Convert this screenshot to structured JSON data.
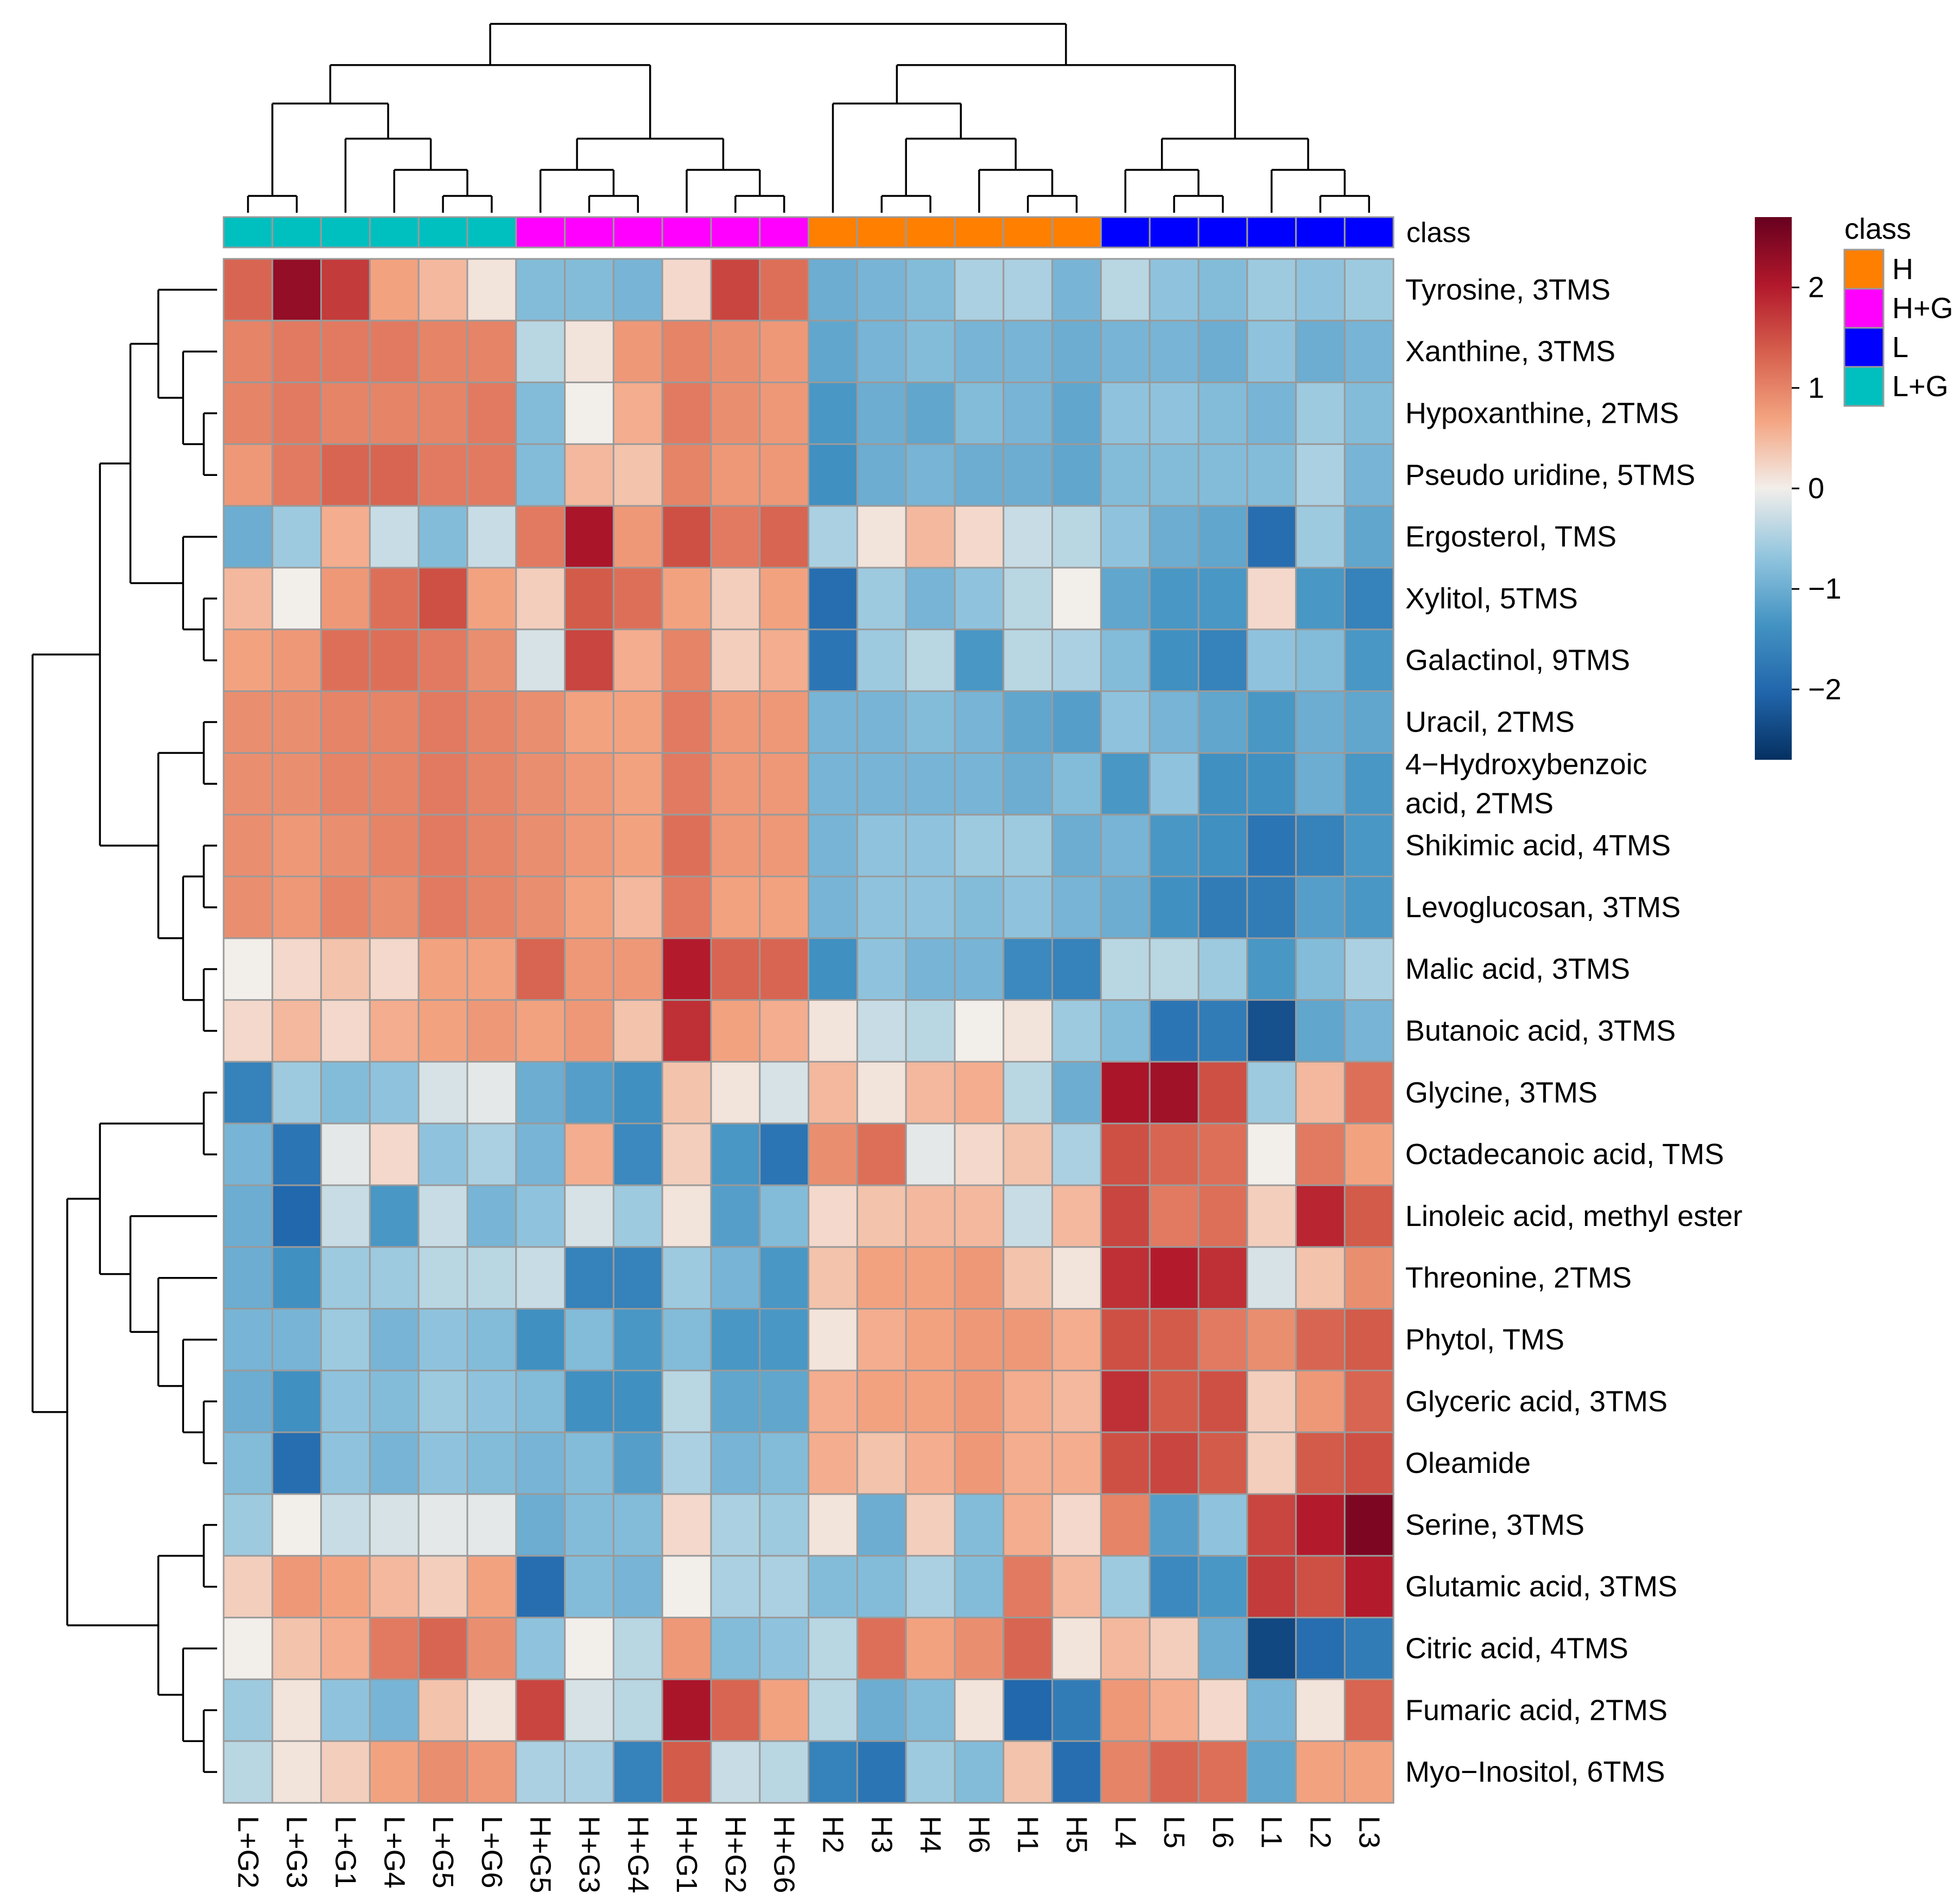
{
  "chart_data": {
    "type": "heatmap",
    "columns": [
      "L+G2",
      "L+G3",
      "L+G1",
      "L+G4",
      "L+G5",
      "L+G6",
      "H+G5",
      "H+G3",
      "H+G4",
      "H+G1",
      "H+G2",
      "H+G6",
      "H2",
      "H3",
      "H4",
      "H6",
      "H1",
      "H5",
      "L4",
      "L5",
      "L6",
      "L1",
      "L2",
      "L3"
    ],
    "column_class": [
      "L+G",
      "L+G",
      "L+G",
      "L+G",
      "L+G",
      "L+G",
      "H+G",
      "H+G",
      "H+G",
      "H+G",
      "H+G",
      "H+G",
      "H",
      "H",
      "H",
      "H",
      "H",
      "H",
      "L",
      "L",
      "L",
      "L",
      "L",
      "L"
    ],
    "class_track_label": "class",
    "rows": [
      "Tyrosine, 3TMS",
      "Xanthine, 3TMS",
      "Hypoxanthine, 2TMS",
      "Pseudo uridine, 5TMS",
      "Ergosterol, TMS",
      "Xylitol, 5TMS",
      "Galactinol, 9TMS",
      "Uracil, 2TMS",
      "4−Hydroxybenzoic acid, 2TMS",
      "Shikimic acid, 4TMS",
      "Levoglucosan, 3TMS",
      "Malic acid, 3TMS",
      "Butanoic acid, 3TMS",
      "Glycine, 3TMS",
      "Octadecanoic acid, TMS",
      "Linoleic acid, methyl ester",
      "Threonine, 2TMS",
      "Phytol, TMS",
      "Glyceric acid, 3TMS",
      "Oleamide",
      "Serine, 3TMS",
      "Glutamic acid, 3TMS",
      "Citric acid, 4TMS",
      "Fumaric acid, 2TMS",
      "Myo−Inositol, 6TMS"
    ],
    "row_labels_display": [
      [
        "Tyrosine, 3TMS"
      ],
      [
        "Xanthine, 3TMS"
      ],
      [
        "Hypoxanthine, 2TMS"
      ],
      [
        "Pseudo uridine, 5TMS"
      ],
      [
        "Ergosterol, TMS"
      ],
      [
        "Xylitol, 5TMS"
      ],
      [
        "Galactinol, 9TMS"
      ],
      [
        "Uracil, 2TMS"
      ],
      [
        "4−Hydroxybenzoic",
        "acid, 2TMS"
      ],
      [
        "Shikimic acid, 4TMS"
      ],
      [
        "Levoglucosan, 3TMS"
      ],
      [
        "Malic acid, 3TMS"
      ],
      [
        "Butanoic acid, 3TMS"
      ],
      [
        "Glycine, 3TMS"
      ],
      [
        "Octadecanoic acid, TMS"
      ],
      [
        "Linoleic acid, methyl ester"
      ],
      [
        "Threonine, 2TMS"
      ],
      [
        "Phytol, TMS"
      ],
      [
        "Glyceric acid, 3TMS"
      ],
      [
        "Oleamide"
      ],
      [
        "Serine, 3TMS"
      ],
      [
        "Glutamic acid, 3TMS"
      ],
      [
        "Citric acid, 4TMS"
      ],
      [
        "Fumaric acid, 2TMS"
      ],
      [
        "Myo−Inositol, 6TMS"
      ]
    ],
    "values": [
      [
        1.3,
        2.3,
        1.7,
        0.7,
        0.5,
        0.1,
        -0.8,
        -0.8,
        -0.9,
        0.2,
        1.6,
        1.2,
        -1.0,
        -0.9,
        -0.8,
        -0.5,
        -0.5,
        -0.9,
        -0.4,
        -0.7,
        -0.8,
        -0.6,
        -0.7,
        -0.6
      ],
      [
        1.0,
        1.1,
        1.1,
        1.1,
        1.0,
        1.0,
        -0.4,
        0.1,
        0.8,
        1.0,
        0.9,
        0.8,
        -1.1,
        -0.9,
        -0.8,
        -0.9,
        -0.9,
        -1.0,
        -0.9,
        -0.9,
        -1.0,
        -0.7,
        -1.0,
        -0.9
      ],
      [
        1.0,
        1.1,
        1.0,
        1.0,
        1.0,
        1.1,
        -0.8,
        0.0,
        0.6,
        1.1,
        0.9,
        0.8,
        -1.3,
        -1.0,
        -1.1,
        -0.8,
        -0.9,
        -1.1,
        -0.7,
        -0.7,
        -0.8,
        -0.9,
        -0.6,
        -0.8
      ],
      [
        0.8,
        1.1,
        1.3,
        1.3,
        1.1,
        1.1,
        -0.8,
        0.5,
        0.4,
        1.0,
        0.8,
        0.8,
        -1.4,
        -1.0,
        -0.9,
        -1.0,
        -1.0,
        -1.1,
        -0.8,
        -0.8,
        -0.8,
        -0.8,
        -0.5,
        -0.9
      ],
      [
        -1.0,
        -0.6,
        0.6,
        -0.3,
        -0.8,
        -0.3,
        1.1,
        2.1,
        0.8,
        1.5,
        1.1,
        1.3,
        -0.5,
        0.1,
        0.5,
        0.2,
        -0.3,
        -0.4,
        -0.7,
        -1.0,
        -1.1,
        -1.9,
        -0.6,
        -1.1
      ],
      [
        0.5,
        0.0,
        0.8,
        1.2,
        1.5,
        0.7,
        0.3,
        1.4,
        1.2,
        0.7,
        0.3,
        0.7,
        -1.9,
        -0.6,
        -0.9,
        -0.7,
        -0.4,
        0.0,
        -1.1,
        -1.3,
        -1.3,
        0.2,
        -1.3,
        -1.6
      ],
      [
        0.7,
        0.8,
        1.2,
        1.2,
        1.1,
        0.9,
        -0.2,
        1.6,
        0.6,
        1.0,
        0.3,
        0.6,
        -1.8,
        -0.6,
        -0.4,
        -1.3,
        -0.4,
        -0.5,
        -0.8,
        -1.4,
        -1.6,
        -0.7,
        -0.8,
        -1.3
      ],
      [
        0.9,
        0.9,
        1.0,
        1.0,
        1.1,
        1.0,
        0.9,
        0.7,
        0.7,
        1.1,
        0.8,
        0.8,
        -0.9,
        -0.9,
        -0.8,
        -0.9,
        -1.1,
        -1.2,
        -0.7,
        -0.9,
        -1.1,
        -1.3,
        -1.0,
        -1.1
      ],
      [
        0.9,
        0.9,
        1.0,
        1.0,
        1.1,
        1.0,
        0.9,
        0.8,
        0.7,
        1.1,
        0.8,
        0.8,
        -0.9,
        -0.9,
        -0.9,
        -0.9,
        -1.0,
        -0.8,
        -1.3,
        -0.7,
        -1.4,
        -1.4,
        -1.0,
        -1.3
      ],
      [
        0.9,
        0.8,
        0.9,
        1.0,
        1.1,
        1.0,
        0.9,
        0.8,
        0.7,
        1.2,
        0.8,
        0.8,
        -0.9,
        -0.7,
        -0.7,
        -0.6,
        -0.6,
        -1.0,
        -0.9,
        -1.3,
        -1.4,
        -1.8,
        -1.6,
        -1.3
      ],
      [
        0.9,
        0.8,
        1.0,
        0.9,
        1.1,
        1.0,
        0.9,
        0.7,
        0.5,
        1.1,
        0.7,
        0.7,
        -0.9,
        -0.7,
        -0.7,
        -0.8,
        -0.7,
        -0.9,
        -1.0,
        -1.4,
        -1.7,
        -1.7,
        -1.2,
        -1.3
      ],
      [
        0.0,
        0.2,
        0.4,
        0.2,
        0.7,
        0.7,
        1.3,
        0.8,
        0.8,
        2.0,
        1.3,
        1.3,
        -1.4,
        -0.7,
        -0.9,
        -0.9,
        -1.5,
        -1.6,
        -0.4,
        -0.4,
        -0.6,
        -1.3,
        -0.8,
        -0.5
      ],
      [
        0.2,
        0.5,
        0.2,
        0.6,
        0.7,
        0.8,
        0.7,
        0.8,
        0.4,
        1.8,
        0.7,
        0.6,
        0.1,
        -0.3,
        -0.4,
        0.0,
        0.1,
        -0.6,
        -0.8,
        -1.8,
        -1.7,
        -2.3,
        -1.1,
        -0.9
      ],
      [
        -1.6,
        -0.6,
        -0.8,
        -0.7,
        -0.2,
        -0.1,
        -1.0,
        -1.2,
        -1.4,
        0.4,
        0.1,
        -0.2,
        0.5,
        0.1,
        0.5,
        0.6,
        -0.4,
        -1.0,
        2.1,
        2.2,
        1.5,
        -0.6,
        0.5,
        1.2
      ],
      [
        -0.9,
        -1.8,
        -0.1,
        0.2,
        -0.7,
        -0.5,
        -0.9,
        0.6,
        -1.5,
        0.3,
        -1.3,
        -1.8,
        0.9,
        1.2,
        -0.1,
        0.2,
        0.4,
        -0.5,
        1.5,
        1.3,
        1.2,
        0.0,
        1.1,
        0.7
      ],
      [
        -1.0,
        -2.0,
        -0.3,
        -1.3,
        -0.3,
        -0.9,
        -0.7,
        -0.2,
        -0.6,
        0.1,
        -1.2,
        -0.8,
        0.2,
        0.4,
        0.5,
        0.5,
        -0.3,
        0.5,
        1.6,
        1.1,
        1.2,
        0.3,
        1.9,
        1.4
      ],
      [
        -1.0,
        -1.4,
        -0.6,
        -0.6,
        -0.4,
        -0.4,
        -0.3,
        -1.6,
        -1.6,
        -0.6,
        -0.9,
        -1.3,
        0.4,
        0.7,
        0.7,
        0.8,
        0.4,
        0.1,
        1.8,
        2.0,
        1.8,
        -0.2,
        0.4,
        0.9
      ],
      [
        -0.9,
        -0.9,
        -0.6,
        -0.9,
        -0.7,
        -0.8,
        -1.4,
        -0.8,
        -1.3,
        -0.8,
        -1.3,
        -1.3,
        0.1,
        0.6,
        0.7,
        0.8,
        0.8,
        0.6,
        1.5,
        1.4,
        1.1,
        0.9,
        1.3,
        1.4
      ],
      [
        -1.0,
        -1.4,
        -0.7,
        -0.8,
        -0.6,
        -0.7,
        -0.8,
        -1.4,
        -1.4,
        -0.4,
        -1.1,
        -1.1,
        0.6,
        0.7,
        0.7,
        0.8,
        0.6,
        0.5,
        1.8,
        1.4,
        1.5,
        0.3,
        0.8,
        1.3
      ],
      [
        -0.8,
        -1.9,
        -0.7,
        -0.9,
        -0.7,
        -0.8,
        -0.9,
        -0.8,
        -1.2,
        -0.5,
        -0.9,
        -0.8,
        0.6,
        0.4,
        0.6,
        0.8,
        0.6,
        0.6,
        1.5,
        1.6,
        1.4,
        0.3,
        1.4,
        1.5
      ],
      [
        -0.6,
        0.0,
        -0.3,
        -0.2,
        -0.1,
        -0.1,
        -1.0,
        -0.8,
        -0.8,
        0.2,
        -0.5,
        -0.6,
        0.1,
        -1.0,
        0.3,
        -0.8,
        0.6,
        0.2,
        1.0,
        -1.2,
        -0.7,
        1.6,
        2.0,
        2.5
      ],
      [
        0.3,
        0.8,
        0.7,
        0.5,
        0.3,
        0.7,
        -1.9,
        -0.8,
        -0.9,
        0.0,
        -0.5,
        -0.5,
        -0.8,
        -0.8,
        -0.5,
        -0.8,
        1.1,
        0.5,
        -0.6,
        -1.5,
        -1.3,
        1.7,
        1.5,
        2.0
      ],
      [
        0.0,
        0.4,
        0.6,
        1.1,
        1.3,
        0.9,
        -0.7,
        0.0,
        -0.4,
        0.8,
        -0.8,
        -0.7,
        -0.4,
        1.2,
        0.7,
        0.9,
        1.3,
        0.1,
        0.5,
        0.3,
        -1.0,
        -2.4,
        -1.9,
        -1.7
      ],
      [
        -0.6,
        0.1,
        -0.7,
        -0.9,
        0.4,
        0.1,
        1.6,
        -0.2,
        -0.4,
        2.1,
        1.3,
        0.7,
        -0.4,
        -1.0,
        -0.8,
        0.1,
        -2.0,
        -1.7,
        0.8,
        0.6,
        0.2,
        -0.9,
        0.1,
        1.3
      ],
      [
        -0.4,
        0.1,
        0.3,
        0.7,
        0.9,
        0.8,
        -0.5,
        -0.5,
        -1.6,
        1.4,
        -0.3,
        -0.4,
        -1.6,
        -1.8,
        -0.6,
        -0.8,
        0.4,
        -1.9,
        1.0,
        1.3,
        1.2,
        -1.1,
        0.7,
        0.7
      ]
    ],
    "color_scale": {
      "type": "diverging",
      "low": "#053061",
      "mid": "#f2eeea",
      "high": "#67001f",
      "range": [
        -2.7,
        2.7
      ],
      "ticks": [
        2,
        1,
        0,
        -1,
        -2
      ],
      "tick_labels": [
        "2",
        "1",
        "0",
        "−1",
        "−2"
      ]
    },
    "class_legend": {
      "title": "class",
      "entries": [
        {
          "label": "H",
          "color": "#ff7f00"
        },
        {
          "label": "H+G",
          "color": "#ff00ff"
        },
        {
          "label": "L",
          "color": "#0000ff"
        },
        {
          "label": "L+G",
          "color": "#00bfbf"
        }
      ]
    },
    "column_dendrogram": "((((L+G2,L+G3),(L+G1,(L+G4,(L+G5,L+G6)))),((H+G5,(H+G3,H+G4)),(H+G1,(H+G2,H+G6)))),((H2,((H3,H4),(H6,(H1,H5)))),((L4,(L5,L6)),(L1,(L2,L3)))))",
    "row_dendrogram": "((((Tyrosine,(Xanthine,(Hypoxanthine,PseudoUridine))),(Ergosterol,(Xylitol,Galactinol))),((Uracil,Hydroxybenzoic),((Shikimic,Levoglucosan),(Malic,Butanoic)))),(((Glycine,Octadecanoic),(Linoleic,(Threonine,(Phytol,(Glyceric,Oleamide))))),((Serine,Glutamic),(Citric,(Fumaric,MyoInositol)))))"
  }
}
